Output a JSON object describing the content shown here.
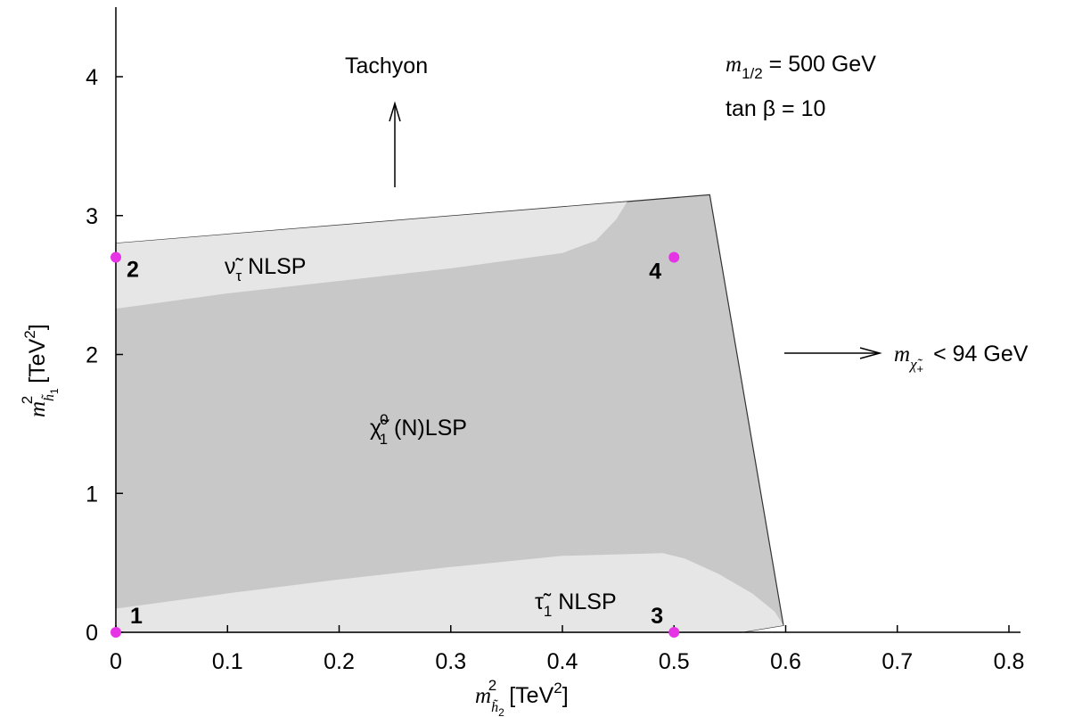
{
  "chart_data": {
    "type": "region-plot",
    "xlabel_sym": "m",
    "xlabel_sub": "h̃",
    "xlabel_subsub": "2",
    "xlabel_sup": "2",
    "xlabel_unit": "[TeV",
    "xlabel_unit_sup": "2",
    "xlabel_unit_close": "]",
    "ylabel_sym": "m",
    "ylabel_sub": "h̃",
    "ylabel_subsub": "1",
    "ylabel_sup": "2",
    "ylabel_unit": "[TeV",
    "ylabel_unit_sup": "2",
    "ylabel_unit_close": "]",
    "xlim": [
      0,
      0.8
    ],
    "ylim": [
      0,
      4.5
    ],
    "xticks": [
      "0",
      "0.1",
      "0.2",
      "0.3",
      "0.4",
      "0.5",
      "0.6",
      "0.7",
      "0.8"
    ],
    "yticks": [
      "0",
      "1",
      "2",
      "3",
      "4"
    ],
    "params": {
      "m12_sym": "m",
      "m12_sub": "1/2",
      "m12_rest": " = 500 GeV",
      "tanb": "tan β = 10"
    },
    "annotations": {
      "tachyon": "Tachyon",
      "chargino_sym": "m",
      "chargino_sub": "χ̃",
      "chargino_subsub": "+",
      "chargino_rest": " < 94 GeV"
    },
    "regions": [
      {
        "name": "χ̃1⁰ (N)LSP",
        "label_main": "χ̃",
        "label_sup": "0",
        "label_sub": "1",
        "label_rest": " (N)LSP",
        "color": "#c8c8c8",
        "boundary": [
          [
            0,
            0.17
          ],
          [
            0,
            2.8
          ],
          [
            0.532,
            3.15
          ],
          [
            0.598,
            0.05
          ],
          [
            0.56,
            0
          ],
          [
            0,
            0
          ]
        ]
      },
      {
        "name": "ν̃τ NLSP",
        "label_main": "ν̃",
        "label_sub": "τ",
        "label_rest": " NLSP",
        "color": "#e6e6e6",
        "boundary": [
          [
            0,
            2.8
          ],
          [
            0.458,
            3.1
          ],
          [
            0.448,
            2.97
          ],
          [
            0.43,
            2.82
          ],
          [
            0.4,
            2.73
          ],
          [
            0.3,
            2.62
          ],
          [
            0.2,
            2.53
          ],
          [
            0.1,
            2.44
          ],
          [
            0,
            2.33
          ]
        ]
      },
      {
        "name": "τ̃1 NLSP",
        "label_main": "τ̃",
        "label_sub": "1",
        "label_rest": " NLSP",
        "color": "#e6e6e6",
        "boundary": [
          [
            0,
            0
          ],
          [
            0,
            0.17
          ],
          [
            0.1,
            0.28
          ],
          [
            0.2,
            0.38
          ],
          [
            0.3,
            0.47
          ],
          [
            0.4,
            0.55
          ],
          [
            0.49,
            0.57
          ],
          [
            0.51,
            0.53
          ],
          [
            0.54,
            0.42
          ],
          [
            0.57,
            0.28
          ],
          [
            0.59,
            0.15
          ],
          [
            0.598,
            0.05
          ],
          [
            0.56,
            0
          ]
        ]
      }
    ],
    "points": [
      {
        "label": "1",
        "x": 0,
        "y": 0,
        "color": "#e533e5"
      },
      {
        "label": "2",
        "x": 0,
        "y": 2.7,
        "color": "#e533e5"
      },
      {
        "label": "3",
        "x": 0.5,
        "y": 0,
        "color": "#e533e5"
      },
      {
        "label": "4",
        "x": 0.5,
        "y": 2.7,
        "color": "#e533e5"
      }
    ],
    "grid": false
  }
}
